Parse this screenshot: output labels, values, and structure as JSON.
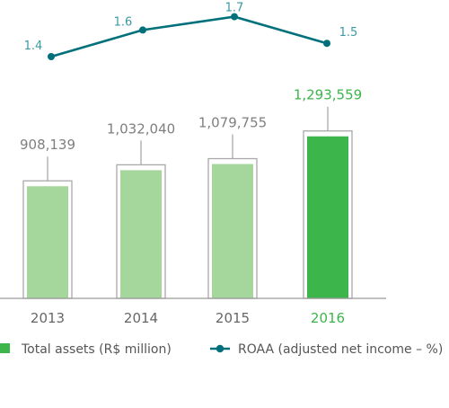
{
  "chart_data": {
    "type": "bar",
    "categories": [
      "2013",
      "2014",
      "2015",
      "2016"
    ],
    "highlight_category": "2016",
    "series": [
      {
        "name": "Total assets (R$ million)",
        "type": "bar",
        "values": [
          908139,
          1032040,
          1079755,
          1293559
        ],
        "value_labels": [
          "908,139",
          "1,032,040",
          "1,079,755",
          "1,293,559"
        ],
        "color": "#a5d69c",
        "highlight_color": "#3cb54a"
      },
      {
        "name": "ROAA (adjusted net income – %)",
        "type": "line",
        "values": [
          1.4,
          1.6,
          1.7,
          1.5
        ],
        "value_labels": [
          "1.4",
          "1.6",
          "1.7",
          "1.5"
        ],
        "color": "#00707a"
      }
    ],
    "legend": {
      "position": "bottom",
      "items": [
        {
          "label": "Total assets (R$ million)",
          "marker": "square",
          "color": "#3cb54a"
        },
        {
          "label": "ROAA (adjusted net income – %)",
          "marker": "line-dot",
          "color": "#00707a"
        }
      ]
    },
    "colors": {
      "frame": "#a9a9a9",
      "axis": "#9b9b9b",
      "value_text": "#7f7f7f",
      "roaa_text": "#3a9aa3",
      "year_text": "#666666"
    }
  }
}
